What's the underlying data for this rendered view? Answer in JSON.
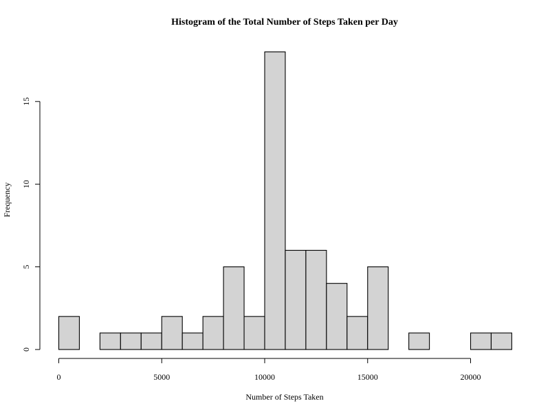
{
  "chart_data": {
    "type": "bar",
    "title": "Histogram of the Total Number of Steps Taken per Day",
    "xlabel": "Number of Steps Taken",
    "ylabel": "Frequency",
    "bin_width": 1000,
    "bins": [
      {
        "start": 0,
        "end": 1000,
        "count": 2
      },
      {
        "start": 1000,
        "end": 2000,
        "count": 0
      },
      {
        "start": 2000,
        "end": 3000,
        "count": 1
      },
      {
        "start": 3000,
        "end": 4000,
        "count": 1
      },
      {
        "start": 4000,
        "end": 5000,
        "count": 1
      },
      {
        "start": 5000,
        "end": 6000,
        "count": 2
      },
      {
        "start": 6000,
        "end": 7000,
        "count": 1
      },
      {
        "start": 7000,
        "end": 8000,
        "count": 2
      },
      {
        "start": 8000,
        "end": 9000,
        "count": 5
      },
      {
        "start": 9000,
        "end": 10000,
        "count": 2
      },
      {
        "start": 10000,
        "end": 11000,
        "count": 18
      },
      {
        "start": 11000,
        "end": 12000,
        "count": 6
      },
      {
        "start": 12000,
        "end": 13000,
        "count": 6
      },
      {
        "start": 13000,
        "end": 14000,
        "count": 4
      },
      {
        "start": 14000,
        "end": 15000,
        "count": 2
      },
      {
        "start": 15000,
        "end": 16000,
        "count": 5
      },
      {
        "start": 16000,
        "end": 17000,
        "count": 0
      },
      {
        "start": 17000,
        "end": 18000,
        "count": 1
      },
      {
        "start": 18000,
        "end": 19000,
        "count": 0
      },
      {
        "start": 19000,
        "end": 20000,
        "count": 0
      },
      {
        "start": 20000,
        "end": 21000,
        "count": 1
      },
      {
        "start": 21000,
        "end": 22000,
        "count": 1
      }
    ],
    "x_ticks": [
      "0",
      "5000",
      "10000",
      "15000",
      "20000"
    ],
    "x_tick_values": [
      0,
      5000,
      10000,
      15000,
      20000
    ],
    "y_ticks": [
      "0",
      "5",
      "10",
      "15"
    ],
    "y_tick_values": [
      0,
      5,
      10,
      15
    ],
    "xlim": [
      0,
      22000
    ],
    "ylim": [
      0,
      18
    ],
    "grid": false,
    "colors": {
      "bar_fill": "#d3d3d3",
      "bar_stroke": "#000000"
    }
  }
}
